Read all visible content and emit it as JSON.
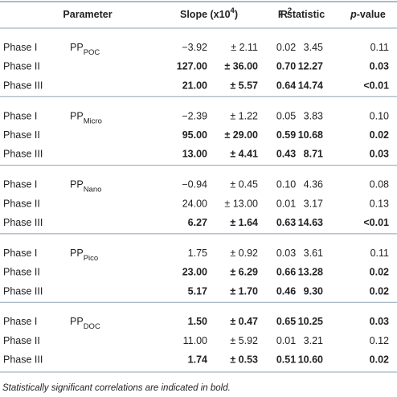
{
  "header": {
    "parameter": "Parameter",
    "slope": {
      "text": "Slope (x10",
      "sup": "4",
      "end": ")"
    },
    "r2": {
      "text": "R",
      "sup": "2"
    },
    "f": "F statistic",
    "p": {
      "italic": "p",
      "rest": "-value"
    }
  },
  "groups": [
    {
      "param": {
        "base": "PP",
        "sub": "POC"
      },
      "rows": [
        {
          "phase": "Phase I",
          "slope": "−3.92",
          "err": "± 2.11",
          "r2": "0.02",
          "f": "3.45",
          "p": "0.11",
          "bold": false
        },
        {
          "phase": "Phase II",
          "slope": "127.00",
          "err": "± 36.00",
          "r2": "0.70",
          "f": "12.27",
          "p": "0.03",
          "bold": true
        },
        {
          "phase": "Phase III",
          "slope": "21.00",
          "err": "± 5.57",
          "r2": "0.64",
          "f": "14.74",
          "p": "<0.01",
          "bold": true
        }
      ]
    },
    {
      "param": {
        "base": "PP",
        "sub": "Micro"
      },
      "rows": [
        {
          "phase": "Phase I",
          "slope": "−2.39",
          "err": "± 1.22",
          "r2": "0.05",
          "f": "3.83",
          "p": "0.10",
          "bold": false
        },
        {
          "phase": "Phase II",
          "slope": "95.00",
          "err": "± 29.00",
          "r2": "0.59",
          "f": "10.68",
          "p": "0.02",
          "bold": true
        },
        {
          "phase": "Phase III",
          "slope": "13.00",
          "err": "± 4.41",
          "r2": "0.43",
          "f": "8.71",
          "p": "0.03",
          "bold": true
        }
      ]
    },
    {
      "param": {
        "base": "PP",
        "sub": "Nano"
      },
      "rows": [
        {
          "phase": "Phase I",
          "slope": "−0.94",
          "err": "± 0.45",
          "r2": "0.10",
          "f": "4.36",
          "p": "0.08",
          "bold": false
        },
        {
          "phase": "Phase II",
          "slope": "24.00",
          "err": "± 13.00",
          "r2": "0.01",
          "f": "3.17",
          "p": "0.13",
          "bold": false
        },
        {
          "phase": "Phase III",
          "slope": "6.27",
          "err": "± 1.64",
          "r2": "0.63",
          "f": "14.63",
          "p": "<0.01",
          "bold": true
        }
      ]
    },
    {
      "param": {
        "base": "PP",
        "sub": "Pico"
      },
      "rows": [
        {
          "phase": "Phase I",
          "slope": "1.75",
          "err": "± 0.92",
          "r2": "0.03",
          "f": "3.61",
          "p": "0.11",
          "bold": false
        },
        {
          "phase": "Phase II",
          "slope": "23.00",
          "err": "± 6.29",
          "r2": "0.66",
          "f": "13.28",
          "p": "0.02",
          "bold": true
        },
        {
          "phase": "Phase III",
          "slope": "5.17",
          "err": "± 1.70",
          "r2": "0.46",
          "f": "9.30",
          "p": "0.02",
          "bold": true
        }
      ]
    },
    {
      "param": {
        "base": "PP",
        "sub": "DOC"
      },
      "rows": [
        {
          "phase": "Phase I",
          "slope": "1.50",
          "err": "± 0.47",
          "r2": "0.65",
          "f": "10.25",
          "p": "0.03",
          "bold": true
        },
        {
          "phase": "Phase II",
          "slope": "11.00",
          "err": "± 5.92",
          "r2": "0.01",
          "f": "3.21",
          "p": "0.12",
          "bold": false
        },
        {
          "phase": "Phase III",
          "slope": "1.74",
          "err": "± 0.53",
          "r2": "0.51",
          "f": "10.60",
          "p": "0.02",
          "bold": true
        }
      ]
    }
  ],
  "footnote": "Statistically significant correlations are indicated in bold."
}
